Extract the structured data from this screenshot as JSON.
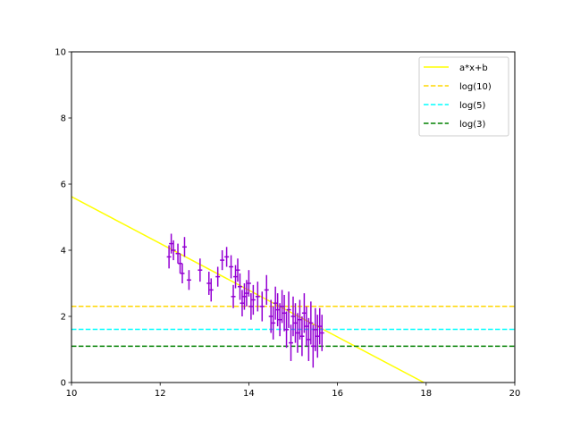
{
  "chart_data": {
    "type": "scatter",
    "xlim": [
      10,
      20
    ],
    "ylim": [
      0,
      10
    ],
    "x_ticks": [
      10,
      12,
      14,
      16,
      18,
      20
    ],
    "y_ticks": [
      0,
      2,
      4,
      6,
      8,
      10
    ],
    "x_tick_labels": [
      "10",
      "12",
      "14",
      "16",
      "18",
      "20"
    ],
    "y_tick_labels": [
      "0",
      "2",
      "4",
      "6",
      "8",
      "10"
    ],
    "grid": false,
    "legend_position": "top-right",
    "points": {
      "color": "#9400d3",
      "x": [
        12.2,
        12.25,
        12.3,
        12.4,
        12.45,
        12.5,
        12.55,
        12.65,
        12.9,
        13.1,
        13.15,
        13.3,
        13.4,
        13.5,
        13.6,
        13.65,
        13.7,
        13.75,
        13.8,
        13.85,
        13.9,
        13.95,
        14.0,
        14.05,
        14.1,
        14.2,
        14.3,
        14.4,
        14.5,
        14.55,
        14.6,
        14.65,
        14.7,
        14.75,
        14.8,
        14.85,
        14.9,
        14.95,
        15.0,
        15.05,
        15.1,
        15.15,
        15.2,
        15.25,
        15.3,
        15.35,
        15.4,
        15.45,
        15.5,
        15.55,
        15.6,
        15.65
      ],
      "y": [
        3.8,
        4.2,
        4.0,
        3.9,
        3.6,
        3.3,
        4.1,
        3.1,
        3.4,
        3.0,
        2.8,
        3.2,
        3.7,
        3.8,
        3.5,
        2.6,
        3.2,
        3.4,
        2.9,
        2.4,
        2.6,
        2.7,
        3.0,
        2.3,
        2.5,
        2.6,
        2.3,
        2.8,
        2.0,
        1.8,
        2.4,
        2.2,
        1.9,
        2.3,
        2.1,
        1.6,
        2.2,
        1.2,
        2.0,
        1.8,
        1.5,
        1.9,
        1.4,
        2.1,
        1.7,
        1.3,
        1.8,
        1.1,
        1.6,
        1.4,
        1.7,
        1.5
      ],
      "yerr": [
        0.35,
        0.3,
        0.3,
        0.3,
        0.3,
        0.3,
        0.3,
        0.3,
        0.35,
        0.35,
        0.35,
        0.3,
        0.3,
        0.3,
        0.35,
        0.35,
        0.35,
        0.35,
        0.4,
        0.4,
        0.4,
        0.4,
        0.4,
        0.4,
        0.45,
        0.45,
        0.45,
        0.45,
        0.5,
        0.5,
        0.5,
        0.5,
        0.5,
        0.5,
        0.55,
        0.55,
        0.55,
        0.55,
        0.6,
        0.6,
        0.6,
        0.6,
        0.6,
        0.6,
        0.6,
        0.65,
        0.65,
        0.65,
        0.65,
        0.65,
        0.55,
        0.55
      ],
      "xerr": [
        0.05,
        0.05,
        0.05,
        0.05,
        0.05,
        0.05,
        0.05,
        0.05,
        0.05,
        0.05,
        0.05,
        0.05,
        0.05,
        0.05,
        0.05,
        0.05,
        0.05,
        0.05,
        0.05,
        0.05,
        0.05,
        0.05,
        0.05,
        0.05,
        0.05,
        0.05,
        0.05,
        0.05,
        0.05,
        0.05,
        0.05,
        0.05,
        0.05,
        0.05,
        0.05,
        0.05,
        0.05,
        0.05,
        0.05,
        0.05,
        0.05,
        0.05,
        0.05,
        0.05,
        0.05,
        0.05,
        0.05,
        0.05,
        0.05,
        0.05,
        0.05,
        0.05
      ]
    },
    "series": [
      {
        "name": "a*x+b",
        "kind": "line",
        "color": "#ffff00",
        "dash": "solid",
        "x": [
          10,
          17.95
        ],
        "y": [
          5.62,
          0.0
        ]
      },
      {
        "name": "log(10)",
        "kind": "hline",
        "color": "#ffd700",
        "dash": "dashed",
        "y": 2.3026
      },
      {
        "name": "log(5)",
        "kind": "hline",
        "color": "#00ffff",
        "dash": "dashed",
        "y": 1.6094
      },
      {
        "name": "log(3)",
        "kind": "hline",
        "color": "#008000",
        "dash": "dashed",
        "y": 1.0986
      }
    ]
  }
}
